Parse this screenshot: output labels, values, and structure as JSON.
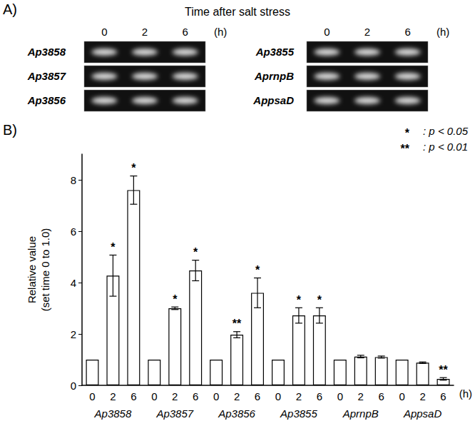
{
  "gel": {
    "label": "A)",
    "title": "Time after salt stress",
    "lanes": [
      "0",
      "2",
      "6"
    ],
    "unit": "(h)",
    "blocks": [
      [
        "Ap3858",
        "Ap3857",
        "Ap3856"
      ],
      [
        "Ap3855",
        "AprnpB",
        "AppsaD"
      ]
    ]
  },
  "chart_data": {
    "type": "bar",
    "title": "B)",
    "y_label": "Relative value\n(set time 0 to 1.0)",
    "categories": [
      "0",
      "2",
      "6",
      "0",
      "2",
      "6",
      "0",
      "2",
      "6",
      "0",
      "2",
      "6",
      "0",
      "2",
      "6",
      "0",
      "2",
      "6"
    ],
    "groups": [
      "Ap3858",
      "Ap3857",
      "Ap3856",
      "Ap3855",
      "AprnpB",
      "AppsaD"
    ],
    "x_unit": "(h)",
    "values": [
      1,
      4.27,
      7.6,
      1,
      3.0,
      4.47,
      1,
      1.97,
      3.6,
      1,
      2.72,
      2.72,
      1,
      1.12,
      1.1,
      1,
      0.88,
      0.25
    ],
    "errors": [
      0,
      0.8,
      0.55,
      0,
      0.05,
      0.4,
      0,
      0.12,
      0.58,
      0,
      0.3,
      0.3,
      0,
      0.05,
      0.04,
      0,
      0.03,
      0.05
    ],
    "significance": [
      null,
      "*",
      "*",
      null,
      "*",
      "*",
      null,
      "**",
      "*",
      null,
      "*",
      "*",
      null,
      null,
      null,
      null,
      null,
      "**"
    ],
    "significance_legend": [
      {
        "mark": "*",
        "text": ": p < 0.05"
      },
      {
        "mark": "**",
        "text": ": p < 0.01"
      }
    ],
    "color": "#ffffff",
    "ylim": [
      0,
      9
    ],
    "yticks": [
      0,
      2,
      4,
      6,
      8
    ],
    "grid": false
  }
}
